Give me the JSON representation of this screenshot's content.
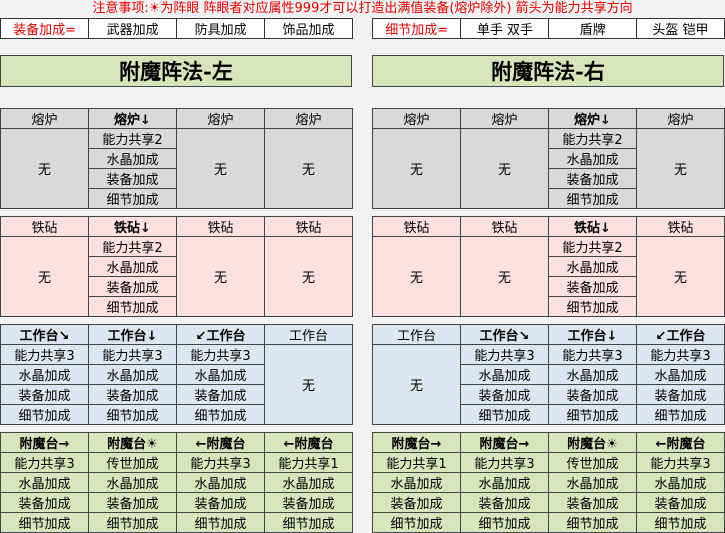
{
  "notice": "注意事项:☀为阵眼 阵眼者对应属性999才可以打造出满值装备(熔炉除外) 箭头为能力共享方向",
  "legend_left": {
    "label": "装备加成=",
    "items": [
      "武器加成",
      "防具加成",
      "饰品加成"
    ]
  },
  "legend_right": {
    "label": "细节加成=",
    "items": [
      "单手 双手",
      "盾牌",
      "头盔 铠甲"
    ]
  },
  "colors": {
    "forge": "#d9d9d9",
    "anvil": "#fde0e0",
    "workbench": "#dce6f1",
    "enchant": "#d8e4bc",
    "notice": "#e00000"
  },
  "left": {
    "title": "附魔阵法-左",
    "blocks": [
      {
        "kind": "forge",
        "headers": [
          "熔炉",
          "熔炉↓",
          "熔炉",
          "熔炉"
        ],
        "columns": [
          {
            "merged": "无"
          },
          [
            "能力共享2",
            "水晶加成",
            "装备加成",
            "细节加成"
          ],
          {
            "merged": "无"
          },
          {
            "merged": "无"
          }
        ]
      },
      {
        "kind": "anvil",
        "headers": [
          "铁砧",
          "铁砧↓",
          "铁砧",
          "铁砧"
        ],
        "columns": [
          {
            "merged": "无"
          },
          [
            "能力共享2",
            "水晶加成",
            "装备加成",
            "细节加成"
          ],
          {
            "merged": "无"
          },
          {
            "merged": "无"
          }
        ]
      },
      {
        "kind": "workbench",
        "headers": [
          "工作台↘",
          "工作台↓",
          "↙工作台",
          "工作台"
        ],
        "columns": [
          [
            "能力共享3",
            "水晶加成",
            "装备加成",
            "细节加成"
          ],
          [
            "能力共享3",
            "水晶加成",
            "装备加成",
            "细节加成"
          ],
          [
            "能力共享3",
            "水晶加成",
            "装备加成",
            "细节加成"
          ],
          {
            "merged": "无"
          }
        ]
      },
      {
        "kind": "enchant",
        "headers": [
          "附魔台→",
          "附魔台☀",
          "←附魔台",
          "←附魔台"
        ],
        "columns": [
          [
            "能力共享3",
            "水晶加成",
            "装备加成",
            "细节加成"
          ],
          [
            "传世加成",
            "水晶加成",
            "装备加成",
            "细节加成"
          ],
          [
            "能力共享3",
            "水晶加成",
            "装备加成",
            "细节加成"
          ],
          [
            "能力共享1",
            "水晶加成",
            "装备加成",
            "细节加成"
          ]
        ]
      }
    ]
  },
  "right": {
    "title": "附魔阵法-右",
    "blocks": [
      {
        "kind": "forge",
        "headers": [
          "熔炉",
          "熔炉",
          "熔炉↓",
          "熔炉"
        ],
        "columns": [
          {
            "merged": "无"
          },
          {
            "merged": "无"
          },
          [
            "能力共享2",
            "水晶加成",
            "装备加成",
            "细节加成"
          ],
          {
            "merged": "无"
          }
        ]
      },
      {
        "kind": "anvil",
        "headers": [
          "铁砧",
          "铁砧",
          "铁砧↓",
          "铁砧"
        ],
        "columns": [
          {
            "merged": "无"
          },
          {
            "merged": "无"
          },
          [
            "能力共享2",
            "水晶加成",
            "装备加成",
            "细节加成"
          ],
          {
            "merged": "无"
          }
        ]
      },
      {
        "kind": "workbench",
        "headers": [
          "工作台",
          "工作台↘",
          "工作台↓",
          "↙工作台"
        ],
        "columns": [
          {
            "merged": "无"
          },
          [
            "能力共享3",
            "水晶加成",
            "装备加成",
            "细节加成"
          ],
          [
            "能力共享3",
            "水晶加成",
            "装备加成",
            "细节加成"
          ],
          [
            "能力共享3",
            "水晶加成",
            "装备加成",
            "细节加成"
          ]
        ]
      },
      {
        "kind": "enchant",
        "headers": [
          "附魔台→",
          "附魔台→",
          "附魔台☀",
          "←附魔台"
        ],
        "columns": [
          [
            "能力共享1",
            "水晶加成",
            "装备加成",
            "细节加成"
          ],
          [
            "能力共享3",
            "水晶加成",
            "装备加成",
            "细节加成"
          ],
          [
            "传世加成",
            "水晶加成",
            "装备加成",
            "细节加成"
          ],
          [
            "能力共享3",
            "水晶加成",
            "装备加成",
            "细节加成"
          ]
        ]
      }
    ]
  }
}
